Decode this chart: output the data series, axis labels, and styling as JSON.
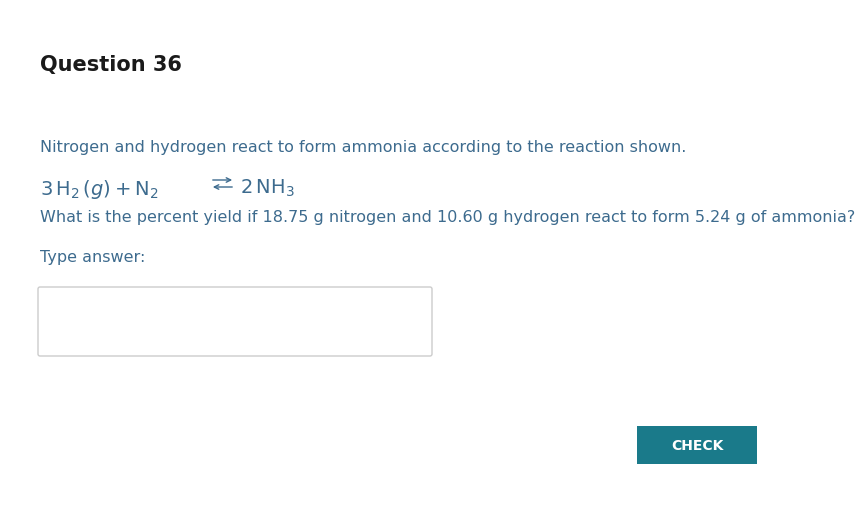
{
  "title": "Question 36",
  "title_fontsize": 15,
  "title_color": "#1a1a1a",
  "background_color": "#ffffff",
  "intro_text": "Nitrogen and hydrogen react to form ammonia according to the reaction shown.",
  "text_color": "#3d6b8e",
  "body_fontsize": 11.5,
  "equation_fontsize": 14,
  "question_text": "What is the percent yield if 18.75 g nitrogen and 10.60 g hydrogen react to form 5.24 g of ammonia?",
  "type_answer_label": "Type answer:",
  "input_box_edgecolor": "#cccccc",
  "check_button_label": "CHECK",
  "check_button_color": "#1a7a8a",
  "check_button_text_color": "#ffffff",
  "check_button_fontsize": 10
}
